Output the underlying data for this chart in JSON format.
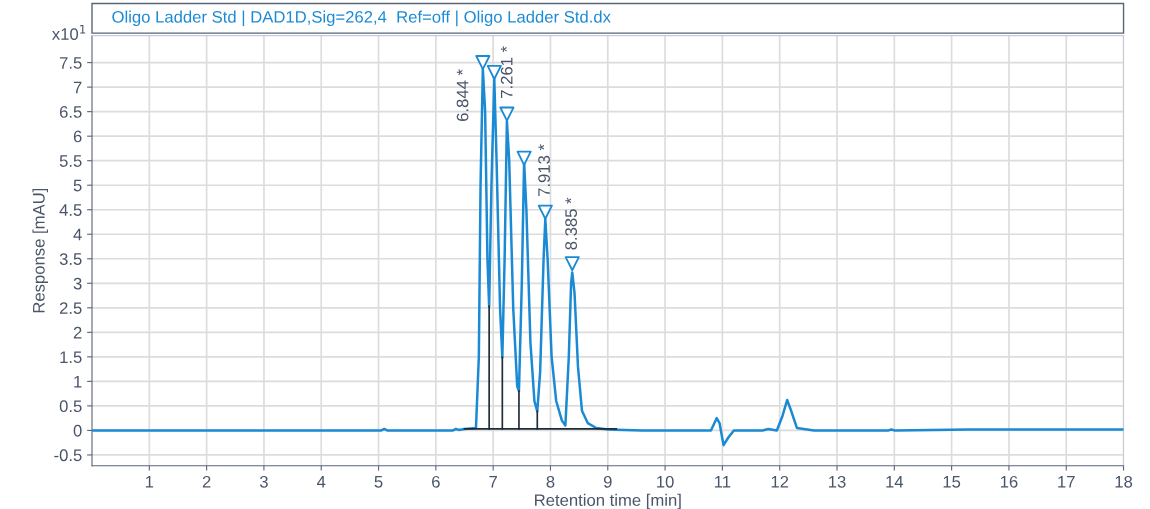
{
  "chart_data": {
    "type": "line",
    "title": "Oligo Ladder Std | DAD1D,Sig=262,4  Ref=off | Oligo Ladder Std.dx",
    "xlabel": "Retention time [min]",
    "ylabel": "Response [mAU]",
    "xlim": [
      0,
      18
    ],
    "xticks": [
      1,
      2,
      3,
      4,
      5,
      6,
      7,
      8,
      9,
      10,
      11,
      12,
      13,
      14,
      15,
      16,
      17,
      18
    ],
    "ylim": [
      -0.72,
      8.05
    ],
    "yticks": [
      -0.5,
      0,
      0.5,
      1,
      1.5,
      2,
      2.5,
      3,
      3.5,
      4,
      4.5,
      5,
      5.5,
      6,
      6.5,
      7,
      7.5
    ],
    "grid": true,
    "annotations": [
      "x10$^{1}$",
      {
        "text": "6.844 *",
        "x": 6.844,
        "y": 7.37
      },
      {
        "text": "7.261 *",
        "x": 7.261,
        "y": 6.31
      },
      {
        "text": "7.913 *",
        "x": 7.913,
        "y": 4.31
      },
      {
        "text": "8.385 *",
        "x": 8.385,
        "y": 3.22
      }
    ],
    "series": [
      {
        "color": "#1a8ad4",
        "x": [
          0,
          5.05,
          5.1,
          5.15,
          6.3,
          6.35,
          6.4,
          6.5,
          6.7,
          6.75,
          6.78,
          6.82,
          6.86,
          6.9,
          6.93,
          6.97,
          7.02,
          7.06,
          7.12,
          7.16,
          7.2,
          7.24,
          7.28,
          7.35,
          7.42,
          7.45,
          7.5,
          7.54,
          7.58,
          7.65,
          7.72,
          7.77,
          7.82,
          7.88,
          7.91,
          7.95,
          8.02,
          8.1,
          8.2,
          8.26,
          8.32,
          8.36,
          8.38,
          8.42,
          8.48,
          8.55,
          8.65,
          8.8,
          9.0,
          9.6,
          10.8,
          10.9,
          10.95,
          11.02,
          11.1,
          11.2,
          11.7,
          11.8,
          11.95,
          12.05,
          12.13,
          12.2,
          12.3,
          12.6,
          13.9,
          13.95,
          14.0,
          15.3,
          18
        ],
        "values": [
          0,
          0,
          0.03,
          0,
          0,
          0.03,
          0.01,
          0.03,
          0.05,
          1.5,
          5,
          7.37,
          6.5,
          3.5,
          2.53,
          5,
          7.16,
          5.5,
          2.5,
          1.49,
          3.5,
          6.31,
          5.5,
          2.5,
          0.9,
          0.8,
          3,
          5.47,
          4.5,
          1.8,
          0.6,
          0.39,
          1.2,
          3.5,
          4.31,
          3.5,
          1.5,
          0.6,
          0.2,
          0.1,
          1.5,
          3,
          3.22,
          2.8,
          1.3,
          0.4,
          0.15,
          0.05,
          0.02,
          0,
          0,
          0.25,
          0.15,
          -0.3,
          -0.15,
          0,
          0,
          0.03,
          0,
          0.3,
          0.62,
          0.4,
          0.05,
          0,
          0,
          0.02,
          0,
          0.02,
          0.02
        ]
      },
      {
        "color": "#1f2a38",
        "x": [
          6.5,
          9.15
        ],
        "values": [
          0.03,
          0.03
        ]
      },
      {
        "color": "#1f2a38",
        "x": [
          6.93,
          6.93
        ],
        "values": [
          0.03,
          2.53
        ]
      },
      {
        "color": "#1f2a38",
        "x": [
          7.16,
          7.16
        ],
        "values": [
          0.03,
          1.49
        ]
      },
      {
        "color": "#1f2a38",
        "x": [
          7.45,
          7.45
        ],
        "values": [
          0.03,
          0.8
        ]
      },
      {
        "color": "#1f2a38",
        "x": [
          7.77,
          7.77
        ],
        "values": [
          0.03,
          0.39
        ]
      },
      {
        "type": "scatter",
        "marker": "triangle",
        "color": "#1a8ad4",
        "x": [
          6.82,
          7.02,
          7.24,
          7.54,
          7.91,
          8.38
        ],
        "values": [
          7.5,
          7.3,
          6.45,
          5.55,
          4.45,
          3.4
        ]
      }
    ]
  }
}
